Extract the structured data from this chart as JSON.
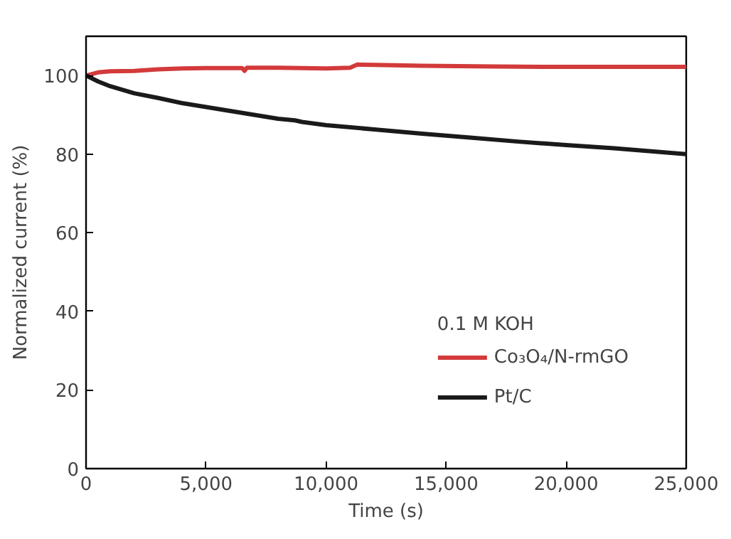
{
  "chart_data": {
    "type": "line",
    "xlabel": "Time (s)",
    "ylabel": "Normalized current (%)",
    "legend_title": "0.1 M KOH",
    "legend": "bottom right",
    "grid": false,
    "line_style": "solid",
    "marker": "none",
    "xlim": [
      0,
      25000
    ],
    "xticks": [
      {
        "value": 0,
        "label": "0"
      },
      {
        "value": 5000,
        "label": "5,000"
      },
      {
        "value": 10000,
        "label": "10,000"
      },
      {
        "value": 15000,
        "label": "15,000"
      },
      {
        "value": 20000,
        "label": "20,000"
      },
      {
        "value": 25000,
        "label": "25,000"
      }
    ],
    "ylim": [
      0,
      110
    ],
    "yticks": [
      0,
      20,
      40,
      60,
      80,
      100
    ],
    "series": [
      {
        "name": "Co₃O₄/N-rmGO",
        "color": "#d33a3a",
        "x": [
          0,
          500,
          1000,
          2000,
          3000,
          4000,
          5000,
          6500,
          6600,
          6700,
          8000,
          9000,
          10000,
          11000,
          11300,
          12000,
          14000,
          17000,
          20000,
          23000,
          25000
        ],
        "values": [
          100,
          100.8,
          101.1,
          101.2,
          101.6,
          101.8,
          101.9,
          101.9,
          101.2,
          102,
          102,
          101.9,
          101.8,
          102,
          102.8,
          102.7,
          102.5,
          102.3,
          102.2,
          102.2,
          102.2
        ]
      },
      {
        "name": "Pt/C",
        "color": "#1a1a1a",
        "x": [
          0,
          500,
          1000,
          2000,
          3000,
          4000,
          5000,
          6000,
          7000,
          8000,
          8700,
          9000,
          10000,
          12000,
          14000,
          16000,
          18000,
          20000,
          22000,
          25000
        ],
        "values": [
          100,
          98.5,
          97.3,
          95.5,
          94.3,
          93,
          92,
          91,
          90,
          89,
          88.6,
          88.2,
          87.4,
          86.3,
          85.2,
          84.2,
          83.2,
          82.3,
          81.5,
          80
        ]
      }
    ]
  }
}
